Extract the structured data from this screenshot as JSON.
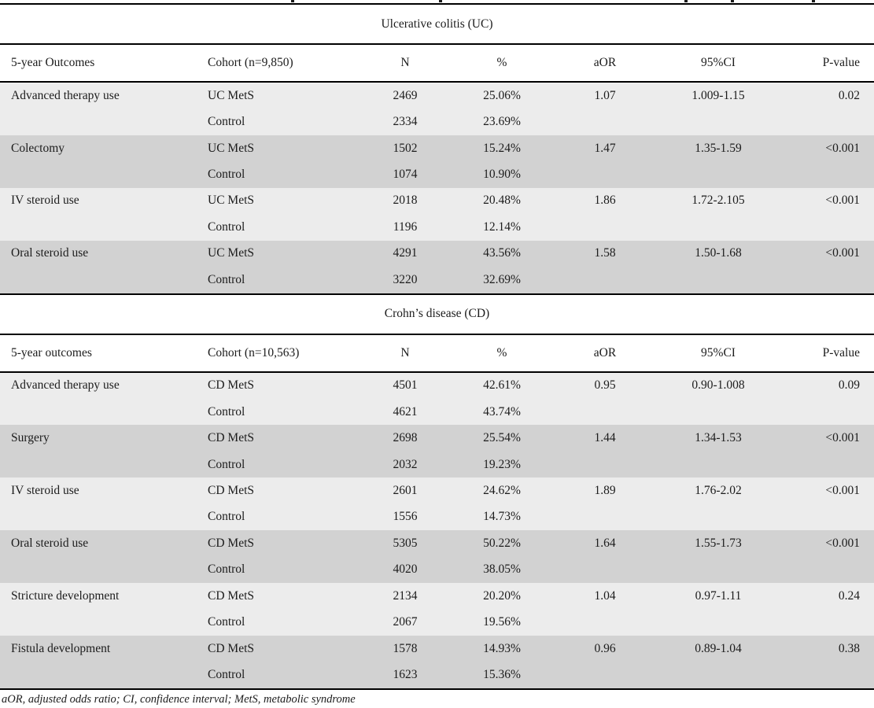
{
  "footnote": "aOR, adjusted odds ratio; CI, confidence interval; MetS, metabolic syndrome",
  "colors": {
    "row_light": "#ececec",
    "row_dark": "#d2d2d2",
    "rule": "#000000",
    "text": "#1c1c1c"
  },
  "sections": [
    {
      "title": "Ulcerative colitis (UC)",
      "columns": [
        "5-year Outcomes",
        "Cohort (n=9,850)",
        "N",
        "%",
        "aOR",
        "95%CI",
        "P-value"
      ],
      "groups": [
        {
          "outcome": "Advanced therapy use",
          "shade": "light",
          "rows": [
            {
              "cohort": "UC MetS",
              "n": "2469",
              "pct": "25.06%",
              "aor": "1.07",
              "ci": "1.009-1.15",
              "p": "0.02"
            },
            {
              "cohort": "Control",
              "n": "2334",
              "pct": "23.69%",
              "aor": "",
              "ci": "",
              "p": ""
            }
          ]
        },
        {
          "outcome": "Colectomy",
          "shade": "dark",
          "rows": [
            {
              "cohort": "UC MetS",
              "n": "1502",
              "pct": "15.24%",
              "aor": "1.47",
              "ci": "1.35-1.59",
              "p": "<0.001"
            },
            {
              "cohort": "Control",
              "n": "1074",
              "pct": "10.90%",
              "aor": "",
              "ci": "",
              "p": ""
            }
          ]
        },
        {
          "outcome": "IV steroid use",
          "shade": "light",
          "rows": [
            {
              "cohort": "UC MetS",
              "n": "2018",
              "pct": "20.48%",
              "aor": "1.86",
              "ci": "1.72-2.105",
              "p": "<0.001"
            },
            {
              "cohort": "Control",
              "n": "1196",
              "pct": "12.14%",
              "aor": "",
              "ci": "",
              "p": ""
            }
          ]
        },
        {
          "outcome": "Oral steroid use",
          "shade": "dark",
          "rows": [
            {
              "cohort": "UC MetS",
              "n": "4291",
              "pct": "43.56%",
              "aor": "1.58",
              "ci": "1.50-1.68",
              "p": "<0.001"
            },
            {
              "cohort": "Control",
              "n": "3220",
              "pct": "32.69%",
              "aor": "",
              "ci": "",
              "p": ""
            }
          ]
        }
      ]
    },
    {
      "title": "Crohn’s disease (CD)",
      "columns": [
        "5-year outcomes",
        "Cohort (n=10,563)",
        "N",
        "%",
        "aOR",
        "95%CI",
        "P-value"
      ],
      "groups": [
        {
          "outcome": "Advanced therapy use",
          "shade": "light",
          "rows": [
            {
              "cohort": "CD MetS",
              "n": "4501",
              "pct": "42.61%",
              "aor": "0.95",
              "ci": "0.90-1.008",
              "p": "0.09"
            },
            {
              "cohort": "Control",
              "n": "4621",
              "pct": "43.74%",
              "aor": "",
              "ci": "",
              "p": ""
            }
          ]
        },
        {
          "outcome": "Surgery",
          "shade": "dark",
          "rows": [
            {
              "cohort": "CD MetS",
              "n": "2698",
              "pct": "25.54%",
              "aor": "1.44",
              "ci": "1.34-1.53",
              "p": "<0.001"
            },
            {
              "cohort": "Control",
              "n": "2032",
              "pct": "19.23%",
              "aor": "",
              "ci": "",
              "p": ""
            }
          ]
        },
        {
          "outcome": "IV steroid use",
          "shade": "light",
          "rows": [
            {
              "cohort": "CD MetS",
              "n": "2601",
              "pct": "24.62%",
              "aor": "1.89",
              "ci": "1.76-2.02",
              "p": "<0.001"
            },
            {
              "cohort": "Control",
              "n": "1556",
              "pct": "14.73%",
              "aor": "",
              "ci": "",
              "p": ""
            }
          ]
        },
        {
          "outcome": "Oral steroid use",
          "shade": "dark",
          "rows": [
            {
              "cohort": "CD MetS",
              "n": "5305",
              "pct": "50.22%",
              "aor": "1.64",
              "ci": "1.55-1.73",
              "p": "<0.001"
            },
            {
              "cohort": "Control",
              "n": "4020",
              "pct": "38.05%",
              "aor": "",
              "ci": "",
              "p": ""
            }
          ]
        },
        {
          "outcome": "Stricture development",
          "shade": "light",
          "rows": [
            {
              "cohort": "CD MetS",
              "n": "2134",
              "pct": "20.20%",
              "aor": "1.04",
              "ci": "0.97-1.11",
              "p": "0.24"
            },
            {
              "cohort": "Control",
              "n": "2067",
              "pct": "19.56%",
              "aor": "",
              "ci": "",
              "p": ""
            }
          ]
        },
        {
          "outcome": "Fistula development",
          "shade": "dark",
          "rows": [
            {
              "cohort": "CD MetS",
              "n": "1578",
              "pct": "14.93%",
              "aor": "0.96",
              "ci": "0.89-1.04",
              "p": "0.38"
            },
            {
              "cohort": "Control",
              "n": "1623",
              "pct": "15.36%",
              "aor": "",
              "ci": "",
              "p": ""
            }
          ]
        }
      ]
    }
  ]
}
